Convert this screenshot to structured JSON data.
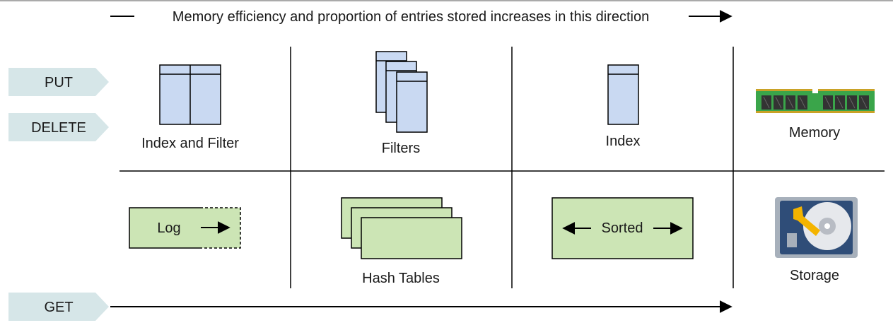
{
  "header": {
    "direction_text": "Memory efficiency and proportion of entries stored increases in this direction"
  },
  "operations": {
    "put": "PUT",
    "delete": "DELETE",
    "get": "GET"
  },
  "memory_row": {
    "index_and_filter": "Index and Filter",
    "filters": "Filters",
    "index": "Index",
    "memory": "Memory"
  },
  "storage_row": {
    "log": "Log",
    "hash_tables": "Hash Tables",
    "sorted": "Sorted",
    "storage": "Storage"
  },
  "colors": {
    "blue_fill": "#c9d9f2",
    "green_fill": "#cce5b5",
    "op_fill": "#d6e6e8",
    "line": "#000000"
  }
}
